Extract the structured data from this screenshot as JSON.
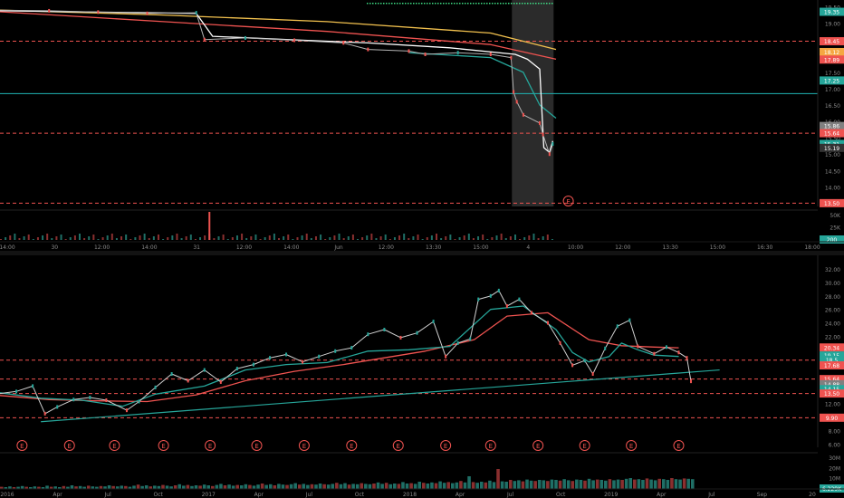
{
  "chart_data": [
    {
      "type": "line",
      "timeframe": "intraday",
      "x_ticks": [
        "14:00",
        "30",
        "12:00",
        "14:00",
        "31",
        "12:00",
        "14:00",
        "Jun",
        "12:00",
        "13:30",
        "15:00",
        "4",
        "10:00",
        "12:00",
        "13:30",
        "15:00",
        "16:30",
        "18:00"
      ],
      "y_ticks": [
        "19.50",
        "19.00",
        "18.50",
        "18.00",
        "17.50",
        "17.00",
        "16.50",
        "16.00",
        "15.50",
        "15.00",
        "14.50",
        "14.00",
        "13.50"
      ],
      "ylim": [
        13.4,
        19.6
      ],
      "price_labels": [
        {
          "value": 19.35,
          "text": "19.35",
          "color": "#26a69a"
        },
        {
          "value": 18.45,
          "text": "18.45",
          "color": "#ef5350"
        },
        {
          "value": 18.12,
          "text": "18.12",
          "color": "#f5a742"
        },
        {
          "value": 17.89,
          "text": "17.89",
          "color": "#ef5350"
        },
        {
          "value": 17.25,
          "text": "17.25",
          "color": "#26a69a"
        },
        {
          "value": 15.86,
          "text": "15.86",
          "color": "#808080"
        },
        {
          "value": 15.64,
          "text": "15.64",
          "color": "#ef5350"
        },
        {
          "value": 15.31,
          "text": "15.31",
          "color": "#26a69a"
        },
        {
          "value": 15.19,
          "text": "15.19",
          "color": "#333333"
        },
        {
          "value": 13.5,
          "text": "13.50",
          "color": "#ef5350"
        }
      ],
      "hlines": [
        {
          "value": 18.45,
          "style": "dashed",
          "color": "#ef5350"
        },
        {
          "value": 16.85,
          "style": "solid",
          "color": "#1fb5b5"
        },
        {
          "value": 15.64,
          "style": "dashed",
          "color": "#ef5350"
        },
        {
          "value": 13.5,
          "style": "dashed",
          "color": "#ef5350"
        }
      ],
      "session_highlight": {
        "x_from": 0.626,
        "x_to": 0.677
      },
      "event_marker": {
        "symbol": "E",
        "x": 0.695
      },
      "series": [
        {
          "color": "#f2c14e",
          "kind": "ma",
          "points": [
            [
              0,
              19.4
            ],
            [
              0.2,
              19.25
            ],
            [
              0.4,
              19.05
            ],
            [
              0.6,
              18.7
            ],
            [
              0.68,
              18.2
            ]
          ]
        },
        {
          "color": "#ef5350",
          "kind": "ma",
          "points": [
            [
              0,
              19.35
            ],
            [
              0.2,
              19.05
            ],
            [
              0.4,
              18.75
            ],
            [
              0.6,
              18.35
            ],
            [
              0.68,
              17.9
            ]
          ]
        },
        {
          "color": "#26a69a",
          "kind": "ma",
          "points": [
            [
              0.5,
              18.1
            ],
            [
              0.6,
              17.95
            ],
            [
              0.64,
              17.5
            ],
            [
              0.66,
              16.5
            ],
            [
              0.68,
              16.1
            ]
          ]
        },
        {
          "color": "#ffffff",
          "kind": "ma",
          "points": [
            [
              0,
              19.38
            ],
            [
              0.24,
              19.3
            ],
            [
              0.26,
              18.6
            ],
            [
              0.35,
              18.5
            ],
            [
              0.45,
              18.4
            ],
            [
              0.55,
              18.25
            ],
            [
              0.63,
              18.05
            ],
            [
              0.645,
              17.9
            ],
            [
              0.66,
              17.6
            ],
            [
              0.665,
              15.2
            ],
            [
              0.672,
              15.05
            ],
            [
              0.676,
              15.4
            ]
          ]
        },
        {
          "color": "#b3b3b3",
          "kind": "price",
          "points": [
            [
              0,
              19.4
            ],
            [
              0.06,
              19.38
            ],
            [
              0.12,
              19.34
            ],
            [
              0.18,
              19.3
            ],
            [
              0.24,
              19.32
            ],
            [
              0.25,
              18.5
            ],
            [
              0.3,
              18.55
            ],
            [
              0.36,
              18.48
            ],
            [
              0.42,
              18.4
            ],
            [
              0.45,
              18.2
            ],
            [
              0.5,
              18.15
            ],
            [
              0.52,
              18.05
            ],
            [
              0.56,
              18.1
            ],
            [
              0.6,
              18.05
            ],
            [
              0.625,
              17.95
            ],
            [
              0.628,
              16.9
            ],
            [
              0.632,
              16.6
            ],
            [
              0.64,
              16.2
            ],
            [
              0.66,
              15.95
            ],
            [
              0.664,
              15.6
            ],
            [
              0.672,
              15.0
            ],
            [
              0.676,
              15.31
            ]
          ]
        }
      ],
      "volume": {
        "y_ticks": [
          "50K",
          "25K",
          "200"
        ],
        "spike_x": 0.255,
        "spike_value": 52000
      }
    },
    {
      "type": "line",
      "timeframe": "daily",
      "x_ticks": [
        "2016",
        "Apr",
        "Jul",
        "Oct",
        "2017",
        "Apr",
        "Jul",
        "Oct",
        "2018",
        "Apr",
        "Jul",
        "Oct",
        "2019",
        "Apr",
        "Jul",
        "Sep",
        "20"
      ],
      "y_ticks": [
        "32.00",
        "30.00",
        "28.00",
        "26.00",
        "24.00",
        "22.00",
        "20.00",
        "18.00",
        "16.00",
        "14.00",
        "12.00",
        "10.00",
        "8.00",
        "6.00"
      ],
      "ylim": [
        5.5,
        33.5
      ],
      "price_labels": [
        {
          "value": 20.34,
          "text": "20.34",
          "color": "#ef5350"
        },
        {
          "value": 19.15,
          "text": "19.15",
          "color": "#26a69a"
        },
        {
          "value": 18.5,
          "text": "18.5",
          "color": "#26a69a"
        },
        {
          "value": 17.68,
          "text": "17.68",
          "color": "#ef5350"
        },
        {
          "value": 15.64,
          "text": "15.64",
          "color": "#ef5350"
        },
        {
          "value": 14.88,
          "text": "14.88",
          "color": "#808080"
        },
        {
          "value": 14.15,
          "text": "14.15",
          "color": "#26a69a"
        },
        {
          "value": 13.5,
          "text": "13.50",
          "color": "#ef5350"
        },
        {
          "value": 9.9,
          "text": "9.90",
          "color": "#ef5350"
        }
      ],
      "hlines": [
        {
          "value": 18.45,
          "style": "dashed",
          "color": "#ef5350"
        },
        {
          "value": 15.64,
          "style": "dashed",
          "color": "#ef5350"
        },
        {
          "value": 13.5,
          "style": "dashed",
          "color": "#ef5350"
        },
        {
          "value": 9.9,
          "style": "dashed",
          "color": "#ef5350"
        }
      ],
      "trendline": {
        "from": [
          0.05,
          9.3
        ],
        "to": [
          0.88,
          17.0
        ],
        "color": "#26a69a"
      },
      "event_markers": {
        "symbol": "E",
        "x": [
          0.027,
          0.085,
          0.14,
          0.2,
          0.257,
          0.314,
          0.372,
          0.43,
          0.487,
          0.545,
          0.6,
          0.658,
          0.715,
          0.772,
          0.83
        ]
      },
      "series": [
        {
          "color": "#ef5350",
          "kind": "ma",
          "points": [
            [
              0,
              13.2
            ],
            [
              0.06,
              12.6
            ],
            [
              0.12,
              12.4
            ],
            [
              0.18,
              12.3
            ],
            [
              0.24,
              13.3
            ],
            [
              0.3,
              15.4
            ],
            [
              0.36,
              16.8
            ],
            [
              0.42,
              17.8
            ],
            [
              0.47,
              18.8
            ],
            [
              0.52,
              19.8
            ],
            [
              0.58,
              21.5
            ],
            [
              0.62,
              25
            ],
            [
              0.67,
              25.5
            ],
            [
              0.72,
              21.5
            ],
            [
              0.76,
              20.6
            ],
            [
              0.8,
              20.4
            ],
            [
              0.83,
              20.3
            ]
          ]
        },
        {
          "color": "#26a69a",
          "kind": "ma",
          "points": [
            [
              0,
              13.6
            ],
            [
              0.05,
              12.8
            ],
            [
              0.1,
              12.5
            ],
            [
              0.15,
              11.6
            ],
            [
              0.19,
              13.4
            ],
            [
              0.25,
              14.6
            ],
            [
              0.3,
              17
            ],
            [
              0.35,
              17.8
            ],
            [
              0.4,
              18.1
            ],
            [
              0.45,
              19.8
            ],
            [
              0.5,
              20
            ],
            [
              0.55,
              20.5
            ],
            [
              0.6,
              26
            ],
            [
              0.64,
              26.5
            ],
            [
              0.68,
              23
            ],
            [
              0.7,
              19.6
            ],
            [
              0.72,
              18.2
            ],
            [
              0.745,
              19
            ],
            [
              0.76,
              21
            ],
            [
              0.78,
              20
            ],
            [
              0.8,
              19.2
            ],
            [
              0.83,
              19.0
            ]
          ]
        },
        {
          "color": "#d0d0d0",
          "kind": "price",
          "points": [
            [
              0,
              13.5
            ],
            [
              0.02,
              13.8
            ],
            [
              0.04,
              14.6
            ],
            [
              0.055,
              10.5
            ],
            [
              0.07,
              11.5
            ],
            [
              0.09,
              12.6
            ],
            [
              0.11,
              12.9
            ],
            [
              0.13,
              12.5
            ],
            [
              0.155,
              11.0
            ],
            [
              0.17,
              12.3
            ],
            [
              0.19,
              14.4
            ],
            [
              0.21,
              16.4
            ],
            [
              0.23,
              15.4
            ],
            [
              0.25,
              17.0
            ],
            [
              0.27,
              15.2
            ],
            [
              0.29,
              17.2
            ],
            [
              0.31,
              17.8
            ],
            [
              0.33,
              18.8
            ],
            [
              0.35,
              19.3
            ],
            [
              0.37,
              18.2
            ],
            [
              0.39,
              19.0
            ],
            [
              0.41,
              19.8
            ],
            [
              0.43,
              20.3
            ],
            [
              0.45,
              22.3
            ],
            [
              0.47,
              23.0
            ],
            [
              0.49,
              21.8
            ],
            [
              0.51,
              22.5
            ],
            [
              0.53,
              24.2
            ],
            [
              0.545,
              19.0
            ],
            [
              0.56,
              21.0
            ],
            [
              0.575,
              21.6
            ],
            [
              0.585,
              27.5
            ],
            [
              0.6,
              28.0
            ],
            [
              0.61,
              28.8
            ],
            [
              0.62,
              26.5
            ],
            [
              0.635,
              27.5
            ],
            [
              0.65,
              25.5
            ],
            [
              0.67,
              24.0
            ],
            [
              0.685,
              21.0
            ],
            [
              0.7,
              17.7
            ],
            [
              0.715,
              18.4
            ],
            [
              0.725,
              16.4
            ],
            [
              0.74,
              20.2
            ],
            [
              0.755,
              23.5
            ],
            [
              0.77,
              24.4
            ],
            [
              0.78,
              20.5
            ],
            [
              0.8,
              19.4
            ],
            [
              0.815,
              20.4
            ],
            [
              0.83,
              19.6
            ],
            [
              0.84,
              18.8
            ],
            [
              0.845,
              15.31
            ]
          ]
        }
      ],
      "volume": {
        "y_ticks": [
          "30M",
          "20M",
          "10M",
          "6.229K"
        ],
        "bars": [
          0.06,
          0.05,
          0.07,
          0.05,
          0.06,
          0.08,
          0.06,
          0.05,
          0.07,
          0.06,
          0.05,
          0.09,
          0.06,
          0.07,
          0.05,
          0.08,
          0.06,
          0.1,
          0.07,
          0.08,
          0.06,
          0.09,
          0.07,
          0.06,
          0.08,
          0.07,
          0.1,
          0.08,
          0.07,
          0.09,
          0.08,
          0.06,
          0.09,
          0.12,
          0.08,
          0.1,
          0.07,
          0.09,
          0.08,
          0.11,
          0.09,
          0.07,
          0.1,
          0.13,
          0.09,
          0.11,
          0.08,
          0.1,
          0.09,
          0.12,
          0.1,
          0.08,
          0.11,
          0.14,
          0.1,
          0.12,
          0.09,
          0.11,
          0.1,
          0.13,
          0.11,
          0.09,
          0.12,
          0.15,
          0.11,
          0.13,
          0.1,
          0.14,
          0.12,
          0.11,
          0.13,
          0.16,
          0.12,
          0.14,
          0.11,
          0.13,
          0.12,
          0.15,
          0.13,
          0.12,
          0.14,
          0.17,
          0.13,
          0.16,
          0.12,
          0.14,
          0.13,
          0.16,
          0.14,
          0.13,
          0.15,
          0.18,
          0.14,
          0.17,
          0.13,
          0.15,
          0.14,
          0.19,
          0.15,
          0.16,
          0.14,
          0.2,
          0.17,
          0.15,
          0.18,
          0.16,
          0.21,
          0.17,
          0.19,
          0.16,
          0.18,
          0.22,
          0.18,
          0.35,
          0.19,
          0.17,
          0.2,
          0.18,
          0.23,
          0.19,
          0.55,
          0.21,
          0.2,
          0.25,
          0.22,
          0.24,
          0.21,
          0.26,
          0.23,
          0.22,
          0.25,
          0.24,
          0.22,
          0.26,
          0.25,
          0.23,
          0.27,
          0.24,
          0.22,
          0.26,
          0.25,
          0.23,
          0.28,
          0.24,
          0.26,
          0.25,
          0.23,
          0.27,
          0.24,
          0.26,
          0.25,
          0.28,
          0.3,
          0.26,
          0.27,
          0.25,
          0.29,
          0.26,
          0.24,
          0.28,
          0.27,
          0.25,
          0.3,
          0.27,
          0.26,
          0.29,
          0.28,
          0.27
        ]
      }
    }
  ]
}
